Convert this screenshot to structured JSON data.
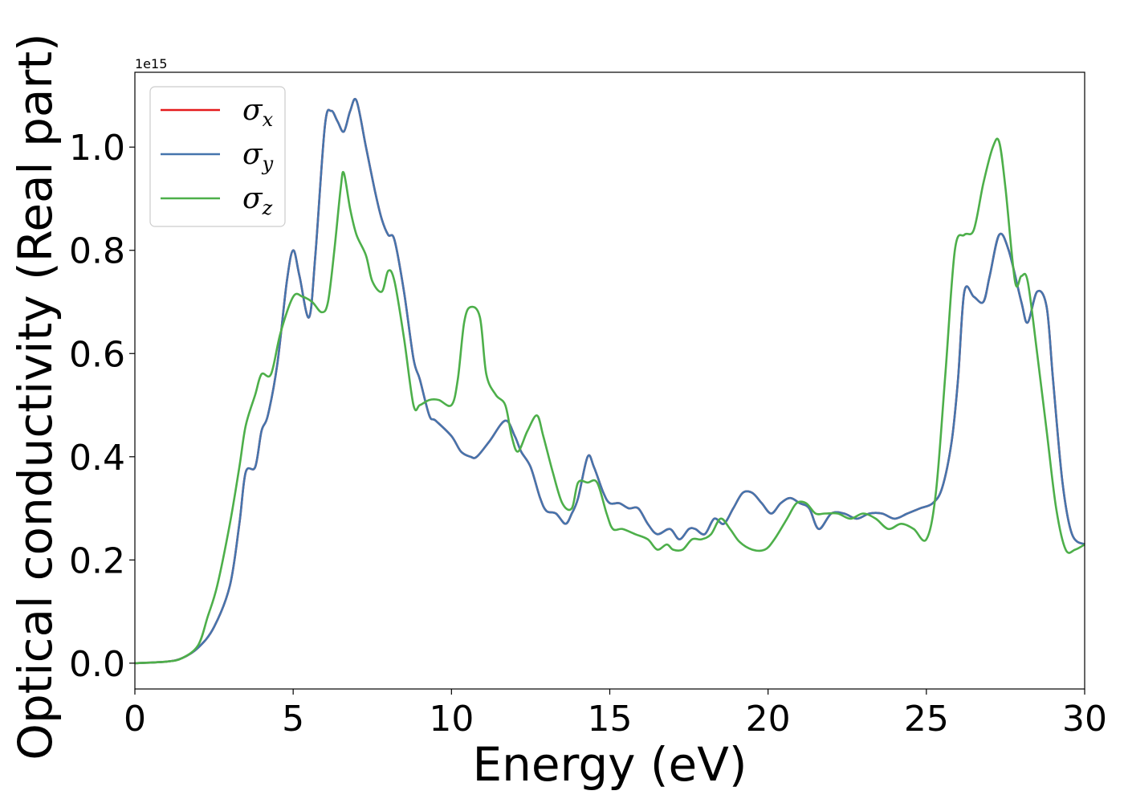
{
  "chart_data": {
    "type": "line",
    "xlabel": "Energy (eV)",
    "ylabel": "Optical conductivity (Real part)",
    "y_offset_label": "1e15",
    "xlim": [
      0,
      30
    ],
    "ylim": [
      -0.05,
      1.145
    ],
    "x_ticks": [
      0,
      5,
      10,
      15,
      20,
      25,
      30
    ],
    "x_tick_labels": [
      "0",
      "5",
      "10",
      "15",
      "20",
      "25",
      "30"
    ],
    "y_ticks": [
      0.0,
      0.2,
      0.4,
      0.6,
      0.8,
      1.0
    ],
    "y_tick_labels": [
      "0.0",
      "0.2",
      "0.4",
      "0.6",
      "0.8",
      "1.0"
    ],
    "grid": false,
    "legend_position": "top-left",
    "series": [
      {
        "name": "σx",
        "legend_base": "σ",
        "legend_sub": "x",
        "color": "#e41a1c",
        "x": [
          0,
          1,
          1.5,
          2,
          2.5,
          3,
          3.3,
          3.5,
          3.8,
          4.0,
          4.2,
          4.5,
          4.8,
          5.0,
          5.2,
          5.5,
          5.7,
          6.0,
          6.2,
          6.4,
          6.6,
          6.8,
          7.0,
          7.3,
          7.6,
          7.8,
          8.0,
          8.2,
          8.5,
          8.8,
          9.0,
          9.3,
          9.5,
          10.0,
          10.3,
          10.6,
          10.8,
          11.2,
          11.7,
          12.0,
          12.2,
          12.5,
          12.8,
          13.0,
          13.3,
          13.6,
          13.8,
          14.0,
          14.3,
          14.5,
          14.8,
          15.0,
          15.3,
          15.6,
          15.9,
          16.2,
          16.5,
          16.9,
          17.2,
          17.5,
          17.7,
          18.0,
          18.3,
          18.6,
          18.9,
          19.2,
          19.5,
          19.8,
          20.1,
          20.4,
          20.7,
          21.0,
          21.3,
          21.6,
          22.0,
          22.4,
          22.8,
          23.2,
          23.6,
          24.0,
          24.4,
          24.8,
          25.2,
          25.5,
          25.8,
          26.0,
          26.2,
          26.5,
          26.8,
          27.0,
          27.3,
          27.6,
          28.0,
          28.2,
          28.5,
          28.8,
          29.0,
          29.3,
          29.6,
          30.0
        ],
        "y": [
          0.0,
          0.003,
          0.01,
          0.03,
          0.07,
          0.15,
          0.27,
          0.37,
          0.38,
          0.45,
          0.48,
          0.58,
          0.74,
          0.8,
          0.75,
          0.67,
          0.79,
          1.04,
          1.07,
          1.05,
          1.03,
          1.07,
          1.09,
          1.0,
          0.91,
          0.86,
          0.83,
          0.82,
          0.72,
          0.59,
          0.55,
          0.48,
          0.47,
          0.44,
          0.41,
          0.4,
          0.4,
          0.43,
          0.47,
          0.44,
          0.41,
          0.38,
          0.32,
          0.295,
          0.29,
          0.27,
          0.29,
          0.32,
          0.4,
          0.38,
          0.33,
          0.31,
          0.31,
          0.3,
          0.3,
          0.27,
          0.25,
          0.26,
          0.24,
          0.26,
          0.26,
          0.25,
          0.28,
          0.27,
          0.3,
          0.33,
          0.33,
          0.31,
          0.29,
          0.31,
          0.32,
          0.31,
          0.3,
          0.26,
          0.29,
          0.29,
          0.28,
          0.29,
          0.29,
          0.28,
          0.29,
          0.3,
          0.31,
          0.34,
          0.43,
          0.55,
          0.72,
          0.71,
          0.7,
          0.75,
          0.83,
          0.8,
          0.7,
          0.66,
          0.72,
          0.69,
          0.55,
          0.35,
          0.25,
          0.23
        ]
      },
      {
        "name": "σy",
        "legend_base": "σ",
        "legend_sub": "y",
        "color": "#4575ad",
        "x": [
          0,
          1,
          1.5,
          2,
          2.5,
          3,
          3.3,
          3.5,
          3.8,
          4.0,
          4.2,
          4.5,
          4.8,
          5.0,
          5.2,
          5.5,
          5.7,
          6.0,
          6.2,
          6.4,
          6.6,
          6.8,
          7.0,
          7.3,
          7.6,
          7.8,
          8.0,
          8.2,
          8.5,
          8.8,
          9.0,
          9.3,
          9.5,
          10.0,
          10.3,
          10.6,
          10.8,
          11.2,
          11.7,
          12.0,
          12.2,
          12.5,
          12.8,
          13.0,
          13.3,
          13.6,
          13.8,
          14.0,
          14.3,
          14.5,
          14.8,
          15.0,
          15.3,
          15.6,
          15.9,
          16.2,
          16.5,
          16.9,
          17.2,
          17.5,
          17.7,
          18.0,
          18.3,
          18.6,
          18.9,
          19.2,
          19.5,
          19.8,
          20.1,
          20.4,
          20.7,
          21.0,
          21.3,
          21.6,
          22.0,
          22.4,
          22.8,
          23.2,
          23.6,
          24.0,
          24.4,
          24.8,
          25.2,
          25.5,
          25.8,
          26.0,
          26.2,
          26.5,
          26.8,
          27.0,
          27.3,
          27.6,
          28.0,
          28.2,
          28.5,
          28.8,
          29.0,
          29.3,
          29.6,
          30.0
        ],
        "y": [
          0.0,
          0.003,
          0.01,
          0.03,
          0.07,
          0.15,
          0.27,
          0.37,
          0.38,
          0.45,
          0.48,
          0.58,
          0.74,
          0.8,
          0.75,
          0.67,
          0.79,
          1.04,
          1.07,
          1.05,
          1.03,
          1.07,
          1.09,
          1.0,
          0.91,
          0.86,
          0.83,
          0.82,
          0.72,
          0.59,
          0.55,
          0.48,
          0.47,
          0.44,
          0.41,
          0.4,
          0.4,
          0.43,
          0.47,
          0.44,
          0.41,
          0.38,
          0.32,
          0.295,
          0.29,
          0.27,
          0.29,
          0.32,
          0.4,
          0.38,
          0.33,
          0.31,
          0.31,
          0.3,
          0.3,
          0.27,
          0.25,
          0.26,
          0.24,
          0.26,
          0.26,
          0.25,
          0.28,
          0.27,
          0.3,
          0.33,
          0.33,
          0.31,
          0.29,
          0.31,
          0.32,
          0.31,
          0.3,
          0.26,
          0.29,
          0.29,
          0.28,
          0.29,
          0.29,
          0.28,
          0.29,
          0.3,
          0.31,
          0.34,
          0.43,
          0.55,
          0.72,
          0.71,
          0.7,
          0.75,
          0.83,
          0.8,
          0.7,
          0.66,
          0.72,
          0.69,
          0.55,
          0.35,
          0.25,
          0.23
        ]
      },
      {
        "name": "σz",
        "legend_base": "σ",
        "legend_sub": "z",
        "color": "#4daf4a",
        "x": [
          0,
          1,
          1.5,
          2,
          2.3,
          2.6,
          3,
          3.3,
          3.5,
          3.8,
          4.0,
          4.3,
          4.6,
          5.0,
          5.3,
          5.6,
          5.9,
          6.1,
          6.3,
          6.5,
          6.6,
          6.8,
          7.0,
          7.3,
          7.5,
          7.8,
          8.0,
          8.2,
          8.5,
          8.8,
          9.0,
          9.3,
          9.6,
          10.0,
          10.2,
          10.4,
          10.6,
          10.9,
          11.1,
          11.4,
          11.7,
          11.9,
          12.1,
          12.4,
          12.7,
          12.9,
          13.2,
          13.5,
          13.8,
          14.0,
          14.3,
          14.6,
          14.9,
          15.1,
          15.4,
          15.8,
          16.2,
          16.5,
          16.8,
          17.0,
          17.3,
          17.6,
          17.9,
          18.2,
          18.5,
          18.8,
          19.1,
          19.5,
          19.9,
          20.2,
          20.6,
          20.9,
          21.2,
          21.5,
          21.8,
          22.2,
          22.6,
          23.0,
          23.4,
          23.8,
          24.2,
          24.6,
          25.0,
          25.3,
          25.6,
          25.9,
          26.2,
          26.5,
          26.8,
          27.1,
          27.3,
          27.5,
          27.8,
          28.0,
          28.2,
          28.5,
          28.8,
          29.1,
          29.4,
          29.7,
          30.0
        ],
        "y": [
          0.0,
          0.003,
          0.01,
          0.035,
          0.09,
          0.15,
          0.27,
          0.38,
          0.46,
          0.52,
          0.56,
          0.56,
          0.64,
          0.71,
          0.71,
          0.7,
          0.68,
          0.7,
          0.8,
          0.92,
          0.95,
          0.88,
          0.83,
          0.79,
          0.74,
          0.72,
          0.76,
          0.74,
          0.63,
          0.5,
          0.5,
          0.51,
          0.51,
          0.5,
          0.55,
          0.66,
          0.69,
          0.67,
          0.56,
          0.52,
          0.5,
          0.44,
          0.41,
          0.45,
          0.48,
          0.44,
          0.37,
          0.31,
          0.3,
          0.35,
          0.35,
          0.35,
          0.29,
          0.26,
          0.26,
          0.25,
          0.24,
          0.22,
          0.23,
          0.22,
          0.22,
          0.24,
          0.24,
          0.25,
          0.28,
          0.26,
          0.235,
          0.22,
          0.22,
          0.24,
          0.28,
          0.31,
          0.31,
          0.29,
          0.29,
          0.29,
          0.28,
          0.29,
          0.28,
          0.26,
          0.27,
          0.26,
          0.24,
          0.33,
          0.56,
          0.8,
          0.83,
          0.84,
          0.93,
          1.0,
          1.01,
          0.92,
          0.74,
          0.75,
          0.74,
          0.6,
          0.45,
          0.3,
          0.22,
          0.22,
          0.23
        ]
      }
    ]
  }
}
